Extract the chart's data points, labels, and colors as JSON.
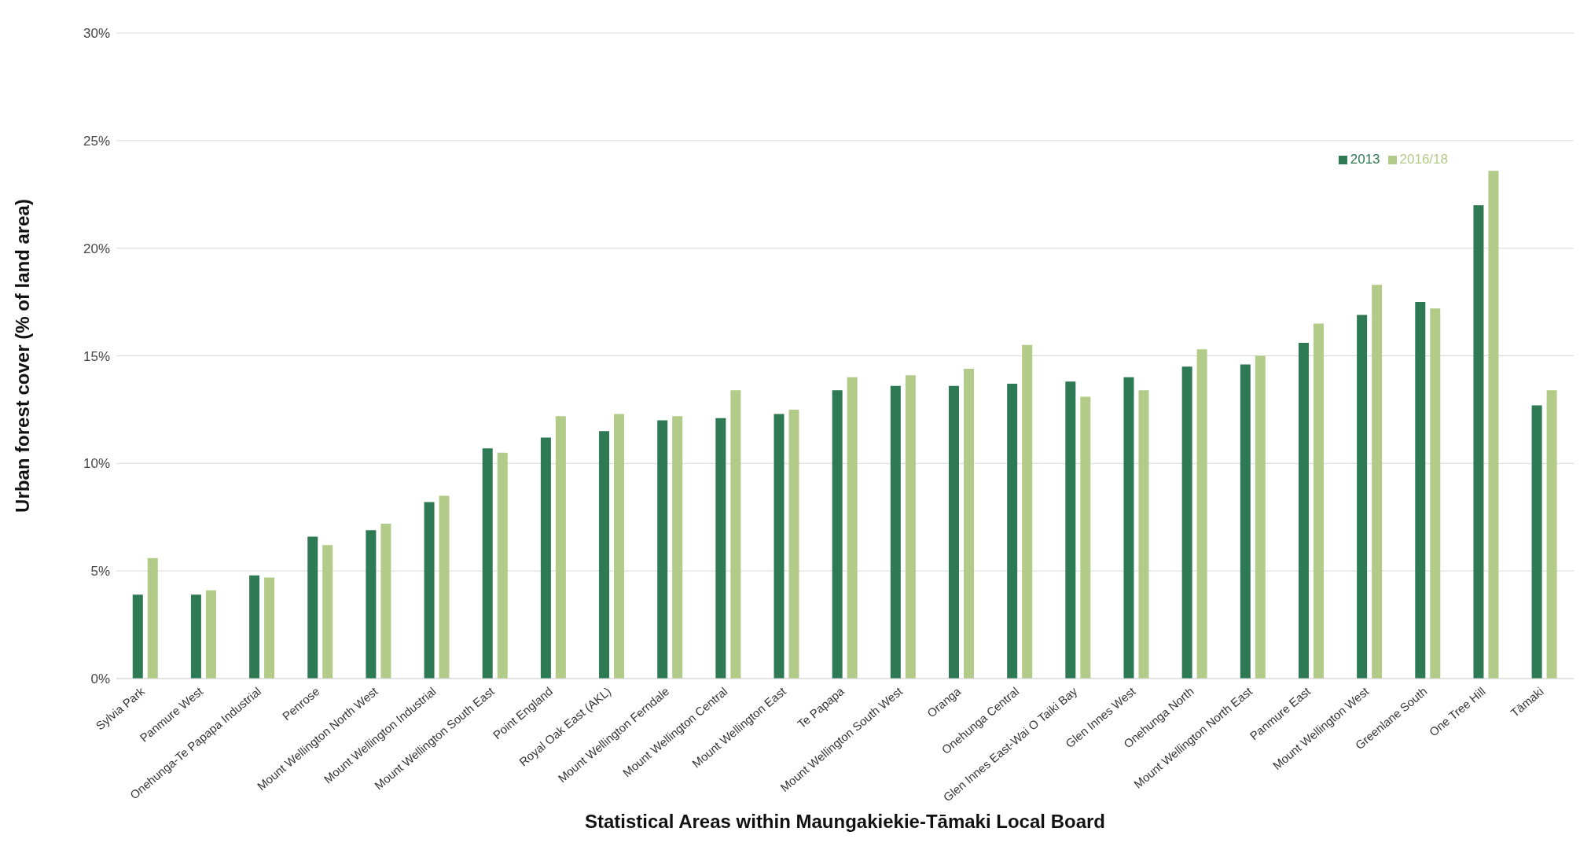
{
  "chart_data": {
    "type": "bar",
    "xlabel": "Statistical Areas within Maungakiekie-Tāmaki Local Board",
    "ylabel": "Urban forest cover (% of land area)",
    "categories": [
      "Sylvia Park",
      "Panmure West",
      "Onehunga-Te Papapa Industrial",
      "Penrose",
      "Mount Wellington North West",
      "Mount Wellington Industrial",
      "Mount Wellington South East",
      "Point England",
      "Royal Oak East (AKL)",
      "Mount Wellington Ferndale",
      "Mount Wellington Central",
      "Mount Wellington East",
      "Te Papapa",
      "Mount Wellington South West",
      "Oranga",
      "Onehunga Central",
      "Glen Innes East-Wai O Taiki Bay",
      "Glen Innes West",
      "Onehunga North",
      "Mount Wellington North East",
      "Panmure East",
      "Mount Wellington West",
      "Greenlane South",
      "One Tree Hill",
      "Tāmaki"
    ],
    "series": [
      {
        "name": "2013",
        "color": "#2e7a55",
        "values": [
          3.9,
          3.9,
          4.8,
          6.6,
          6.9,
          8.2,
          10.7,
          11.2,
          11.5,
          12.0,
          12.1,
          12.3,
          13.4,
          13.6,
          13.6,
          13.7,
          13.8,
          14.0,
          14.5,
          14.6,
          15.6,
          16.9,
          17.5,
          22.0,
          12.7
        ]
      },
      {
        "name": "2016/18",
        "color": "#b3cb88",
        "values": [
          5.6,
          4.1,
          4.7,
          6.2,
          7.2,
          8.5,
          10.5,
          12.2,
          12.3,
          12.2,
          13.4,
          12.5,
          14.0,
          14.1,
          14.4,
          15.5,
          13.1,
          13.4,
          15.3,
          15.0,
          16.5,
          18.3,
          17.2,
          23.6,
          13.4
        ]
      }
    ],
    "ylim": [
      0,
      30
    ],
    "yticks": [
      {
        "value": 0,
        "label": "0%"
      },
      {
        "value": 5,
        "label": "5%"
      },
      {
        "value": 10,
        "label": "10%"
      },
      {
        "value": 15,
        "label": "15%"
      },
      {
        "value": 20,
        "label": "20%"
      },
      {
        "value": 25,
        "label": "25%"
      },
      {
        "value": 30,
        "label": "30%"
      }
    ],
    "grid": "y",
    "legend": "top right"
  }
}
